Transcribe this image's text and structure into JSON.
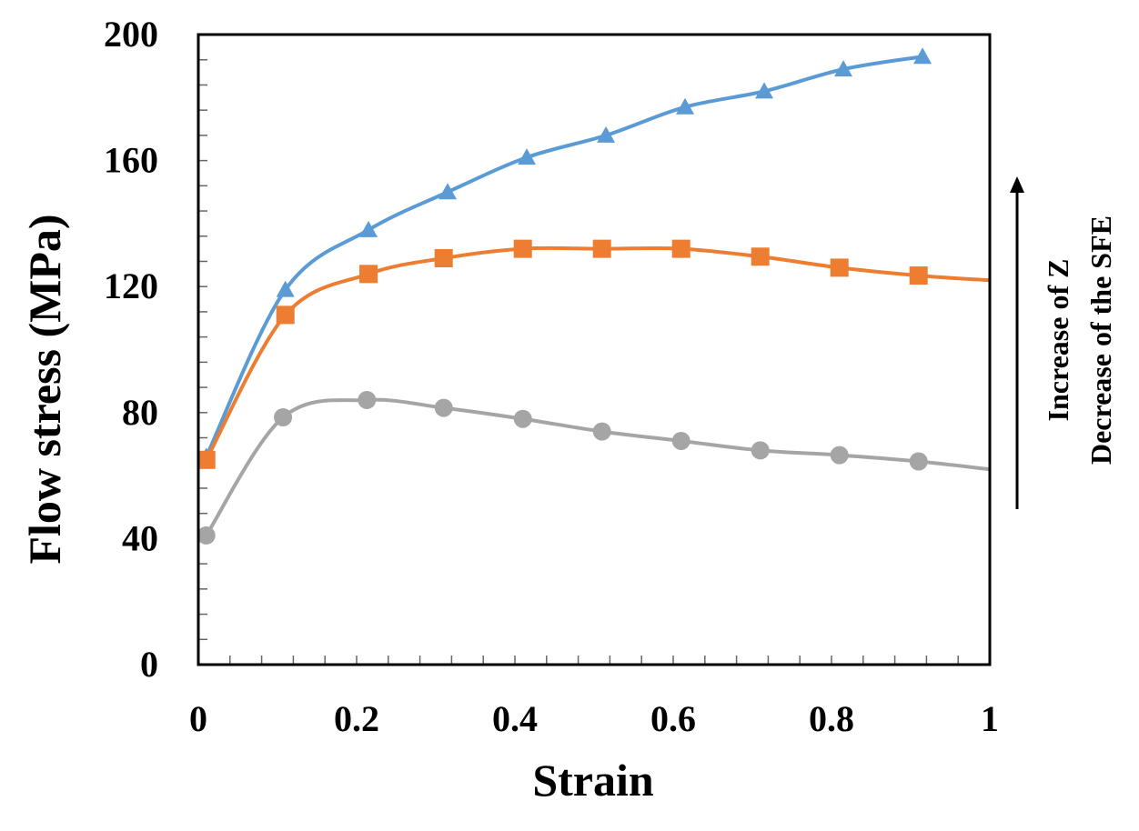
{
  "chart_data": {
    "type": "line",
    "title": "",
    "xlabel": "Strain",
    "ylabel": "Flow stress (MPa)",
    "xlim": [
      0,
      1
    ],
    "ylim": [
      0,
      200
    ],
    "xticks": [
      "0",
      "0.2",
      "0.4",
      "0.6",
      "0.8",
      "1"
    ],
    "yticks": [
      "0",
      "40",
      "80",
      "120",
      "160",
      "200"
    ],
    "grid": false,
    "legend": "none",
    "annotations": [
      "Increase of Z",
      "Decrease of the SFE"
    ],
    "series": [
      {
        "marker": "triangle",
        "color": "#5B9BD5",
        "x": [
          0.01,
          0.11,
          0.215,
          0.315,
          0.415,
          0.515,
          0.615,
          0.715,
          0.815,
          0.915
        ],
        "y": [
          66,
          119,
          138,
          150,
          161,
          168,
          177,
          182,
          189,
          193
        ],
        "curve_end": null
      },
      {
        "marker": "square",
        "color": "#ED7D31",
        "x": [
          0.01,
          0.11,
          0.215,
          0.31,
          0.41,
          0.51,
          0.61,
          0.71,
          0.81,
          0.91
        ],
        "y": [
          65,
          111,
          124,
          129,
          132,
          132,
          132,
          129.5,
          126,
          123.5
        ],
        "curve_end": [
          1.0,
          122
        ]
      },
      {
        "marker": "circle",
        "color": "#A5A5A5",
        "x": [
          0.01,
          0.107,
          0.213,
          0.31,
          0.41,
          0.51,
          0.61,
          0.71,
          0.81,
          0.91
        ],
        "y": [
          41,
          78.5,
          84,
          81.5,
          78,
          74,
          71,
          68,
          66.5,
          64.5
        ],
        "curve_end": [
          1.0,
          62
        ]
      }
    ]
  }
}
